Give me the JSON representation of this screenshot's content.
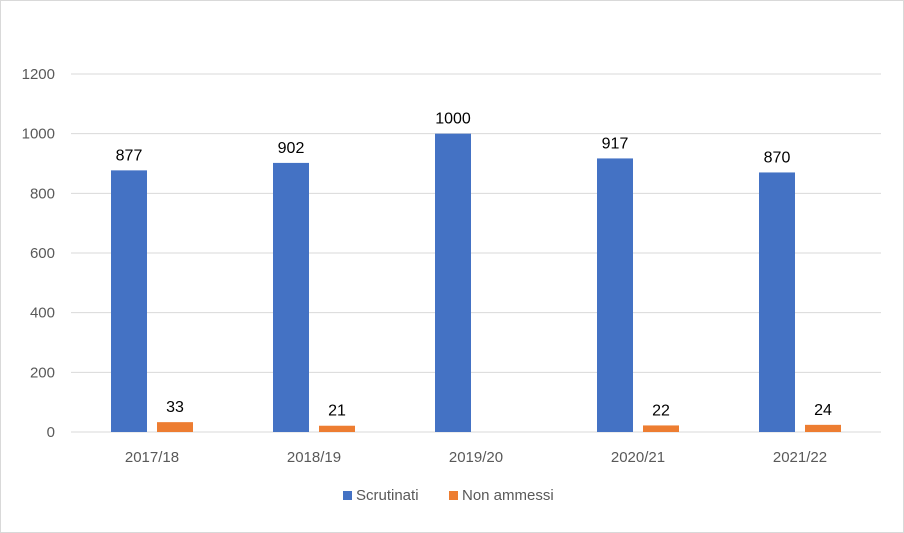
{
  "chart_data": {
    "type": "bar",
    "title": "",
    "xlabel": "",
    "ylabel": "",
    "categories": [
      "2017/18",
      "2018/19",
      "2019/20",
      "2020/21",
      "2021/22"
    ],
    "series": [
      {
        "name": "Scrutinati",
        "color": "#4472c4",
        "values": [
          877,
          902,
          1000,
          917,
          870
        ],
        "data_labels": [
          "877",
          "902",
          "1000",
          "917",
          "870"
        ]
      },
      {
        "name": "Non ammessi",
        "color": "#ed7d31",
        "values": [
          33,
          21,
          0,
          22,
          24
        ],
        "data_labels": [
          "33",
          "21",
          "",
          "22",
          "24"
        ]
      }
    ],
    "ylim": [
      0,
      1200
    ],
    "yticks": [
      0,
      200,
      400,
      600,
      800,
      1000,
      1200
    ],
    "ytick_labels": [
      "0",
      "200",
      "400",
      "600",
      "800",
      "1000",
      "1200"
    ],
    "grid": true,
    "gridline_color": "#d9d9d9",
    "legend_position": "bottom"
  }
}
